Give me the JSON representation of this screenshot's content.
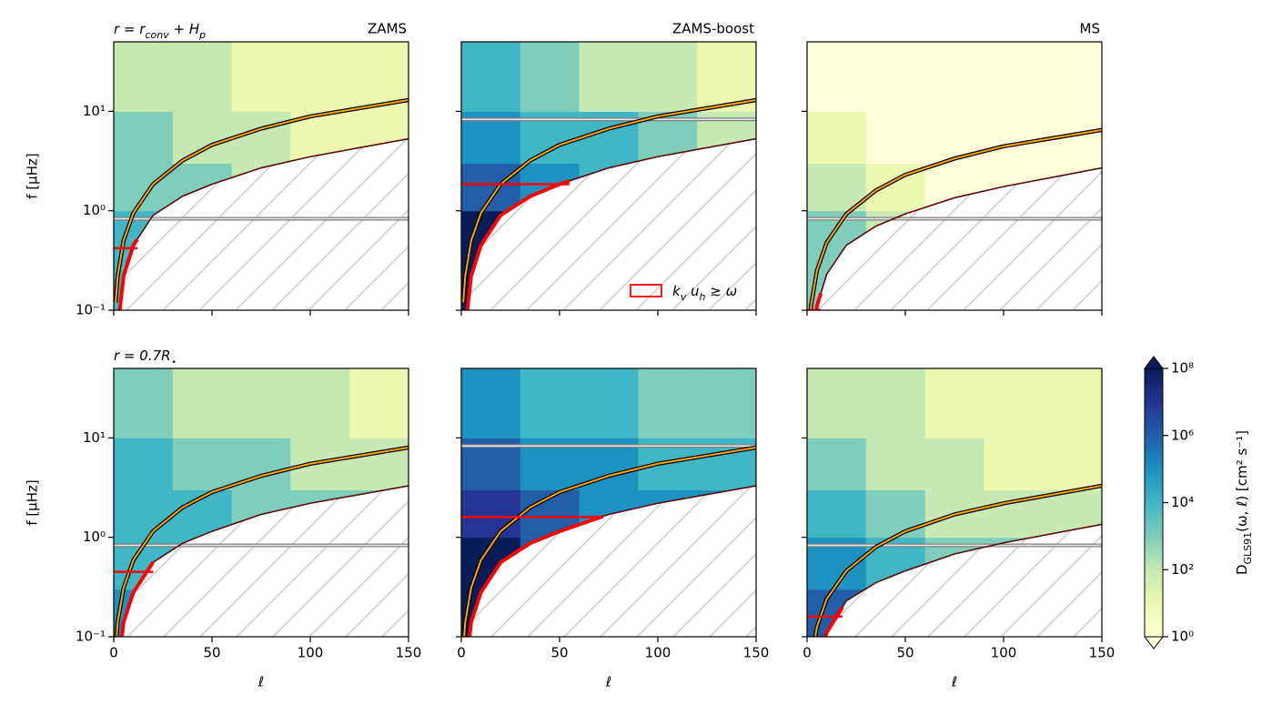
{
  "chart_data": [
    {
      "type": "heatmap",
      "title": "ZAMS",
      "row_label": "r = r_{conv} + H_p",
      "ylabel": "f [μHz]",
      "show_ytick_labels": true,
      "show_xtick_labels": false,
      "xlim": [
        0,
        150
      ],
      "xticks": [
        0,
        50,
        100,
        150
      ],
      "ylim": [
        0.1,
        50
      ],
      "log_y": true,
      "yticks": [
        {
          "value": 0.1,
          "label": "10⁻¹"
        },
        {
          "value": 1,
          "label": "10⁰"
        },
        {
          "value": 10,
          "label": "10¹"
        }
      ],
      "l_edges": [
        0,
        30,
        60,
        90,
        120,
        150
      ],
      "f_edges": [
        0.1,
        0.3,
        1,
        3,
        10,
        50
      ],
      "values": [
        [
          10000.0,
          100.0,
          10.0,
          10.0,
          10.0
        ],
        [
          10000.0,
          100.0,
          10.0,
          10.0,
          10.0
        ],
        [
          1000.0,
          1000.0,
          100.0,
          10.0,
          10.0
        ],
        [
          1000.0,
          100.0,
          100.0,
          10.0,
          10.0
        ],
        [
          100.0,
          100.0,
          10.0,
          10.0,
          10.0
        ]
      ],
      "curves": {
        "l": [
          1,
          2,
          5,
          10,
          20,
          35,
          50,
          75,
          100,
          150
        ],
        "upper": [
          0.12,
          0.22,
          0.5,
          0.95,
          1.85,
          3.2,
          4.6,
          6.7,
          8.9,
          13
        ],
        "lower": [
          0.03,
          0.065,
          0.22,
          0.45,
          0.9,
          1.4,
          1.85,
          2.7,
          3.5,
          5.3
        ]
      },
      "upper_color": "#ffa500",
      "lower_color": "#5a0a0a",
      "hline": 0.83,
      "kvuh": {
        "f": 0.42,
        "l_max": 12
      },
      "kvuh_color": "#ff0000"
    },
    {
      "type": "heatmap",
      "title": "ZAMS-boost",
      "show_ytick_labels": false,
      "show_xtick_labels": false,
      "xlim": [
        0,
        150
      ],
      "xticks": [
        0,
        50,
        100,
        150
      ],
      "ylim": [
        0.1,
        50
      ],
      "log_y": true,
      "yticks": [
        {
          "value": 0.1,
          "label": "10⁻¹"
        },
        {
          "value": 1,
          "label": "10⁰"
        },
        {
          "value": 10,
          "label": "10¹"
        }
      ],
      "l_edges": [
        0,
        30,
        60,
        90,
        120,
        150
      ],
      "f_edges": [
        0.1,
        0.3,
        1,
        3,
        10,
        50
      ],
      "values": [
        [
          100000000.0,
          100000.0,
          10000.0,
          10000.0,
          10000.0
        ],
        [
          100000000.0,
          1000000.0,
          100000.0,
          10000.0,
          10000.0
        ],
        [
          1000000.0,
          100000.0,
          10000.0,
          1000.0,
          1000.0
        ],
        [
          100000.0,
          10000.0,
          10000.0,
          1000.0,
          100.0
        ],
        [
          10000.0,
          1000.0,
          100.0,
          100.0,
          10.0
        ]
      ],
      "curves": {
        "l": [
          1,
          2,
          5,
          10,
          20,
          35,
          50,
          75,
          100,
          150
        ],
        "upper": [
          0.12,
          0.22,
          0.5,
          0.95,
          1.85,
          3.2,
          4.6,
          6.7,
          8.9,
          13
        ],
        "lower": [
          0.03,
          0.065,
          0.22,
          0.45,
          0.9,
          1.4,
          1.85,
          2.7,
          3.5,
          5.3
        ]
      },
      "upper_color": "#ffa500",
      "lower_color": "#5a0a0a",
      "hline": 8.3,
      "kvuh": {
        "f": 1.85,
        "l_max": 55
      },
      "kvuh_color": "#ff0000",
      "legend": {
        "label": "k_v u_h ≳ ω",
        "corner": "lower right"
      }
    },
    {
      "type": "heatmap",
      "title": "MS",
      "show_ytick_labels": false,
      "show_xtick_labels": false,
      "xlim": [
        0,
        150
      ],
      "xticks": [
        0,
        50,
        100,
        150
      ],
      "ylim": [
        0.1,
        50
      ],
      "log_y": true,
      "yticks": [
        {
          "value": 0.1,
          "label": "10⁻¹"
        },
        {
          "value": 1,
          "label": "10⁰"
        },
        {
          "value": 10,
          "label": "10¹"
        }
      ],
      "l_edges": [
        0,
        30,
        60,
        90,
        120,
        150
      ],
      "f_edges": [
        0.1,
        0.3,
        1,
        3,
        10,
        50
      ],
      "values": [
        [
          1000.0,
          10.0,
          1,
          1,
          1
        ],
        [
          1000.0,
          100.0,
          10.0,
          1,
          1
        ],
        [
          100.0,
          10.0,
          1,
          1,
          1
        ],
        [
          10.0,
          1,
          1,
          1,
          1
        ],
        [
          1,
          1,
          1,
          1,
          1
        ]
      ],
      "curves": {
        "l": [
          1,
          2,
          5,
          10,
          20,
          35,
          50,
          75,
          100,
          150
        ],
        "upper": [
          0.06,
          0.11,
          0.25,
          0.48,
          0.93,
          1.6,
          2.3,
          3.35,
          4.45,
          6.5
        ],
        "lower": [
          0.015,
          0.033,
          0.11,
          0.23,
          0.45,
          0.7,
          0.93,
          1.35,
          1.75,
          2.7
        ]
      },
      "upper_color": "#ffa500",
      "lower_color": "#5a0a0a",
      "hline": 0.83,
      "kvuh": {
        "f": 0.1,
        "l_max": 7
      },
      "kvuh_color": "#ff0000"
    },
    {
      "type": "heatmap",
      "row_label": "r = 0.7R_⋆",
      "ylabel": "f [μHz]",
      "xlabel": "ℓ",
      "show_ytick_labels": true,
      "show_xtick_labels": true,
      "xlim": [
        0,
        150
      ],
      "xticks": [
        0,
        50,
        100,
        150
      ],
      "ylim": [
        0.1,
        50
      ],
      "log_y": true,
      "yticks": [
        {
          "value": 0.1,
          "label": "10⁻¹"
        },
        {
          "value": 1,
          "label": "10⁰"
        },
        {
          "value": 10,
          "label": "10¹"
        }
      ],
      "l_edges": [
        0,
        30,
        60,
        90,
        120,
        150
      ],
      "f_edges": [
        0.1,
        0.3,
        1,
        3,
        10,
        50
      ],
      "values": [
        [
          100000.0,
          1000.0,
          1000.0,
          1000.0,
          1000.0
        ],
        [
          10000.0,
          10000.0,
          1000.0,
          1000.0,
          1000.0
        ],
        [
          10000.0,
          10000.0,
          1000.0,
          1000.0,
          1000.0
        ],
        [
          10000.0,
          1000.0,
          1000.0,
          100.0,
          100.0
        ],
        [
          1000.0,
          100.0,
          100.0,
          100.0,
          10.0
        ]
      ],
      "curves": {
        "l": [
          1,
          2,
          5,
          10,
          20,
          35,
          50,
          75,
          100,
          150
        ],
        "upper": [
          0.074,
          0.14,
          0.31,
          0.59,
          1.15,
          2,
          2.85,
          4.15,
          5.5,
          8
        ],
        "lower": [
          0.019,
          0.04,
          0.14,
          0.28,
          0.56,
          0.87,
          1.15,
          1.7,
          2.2,
          3.3
        ]
      },
      "upper_color": "#ffa500",
      "lower_color": "#5a0a0a",
      "hline": 0.83,
      "kvuh": {
        "f": 0.45,
        "l_max": 20
      },
      "kvuh_color": "#ff0000"
    },
    {
      "type": "heatmap",
      "xlabel": "ℓ",
      "show_ytick_labels": false,
      "show_xtick_labels": true,
      "xlim": [
        0,
        150
      ],
      "xticks": [
        0,
        50,
        100,
        150
      ],
      "ylim": [
        0.1,
        50
      ],
      "log_y": true,
      "yticks": [
        {
          "value": 0.1,
          "label": "10⁻¹"
        },
        {
          "value": 1,
          "label": "10⁰"
        },
        {
          "value": 10,
          "label": "10¹"
        }
      ],
      "l_edges": [
        0,
        30,
        60,
        90,
        120,
        150
      ],
      "f_edges": [
        0.1,
        0.3,
        1,
        3,
        10,
        50
      ],
      "values": [
        [
          100000000.0,
          10000000.0,
          1000000.0,
          1000000.0,
          1000000.0
        ],
        [
          100000000.0,
          1000000.0,
          100000.0,
          100000.0,
          100000.0
        ],
        [
          10000000.0,
          1000000.0,
          100000.0,
          100000.0,
          100000.0
        ],
        [
          1000000.0,
          100000.0,
          100000.0,
          10000.0,
          10000.0
        ],
        [
          100000.0,
          10000.0,
          10000.0,
          1000.0,
          1000.0
        ]
      ],
      "curves": {
        "l": [
          1,
          2,
          5,
          10,
          20,
          35,
          50,
          75,
          100,
          150
        ],
        "upper": [
          0.074,
          0.14,
          0.31,
          0.59,
          1.15,
          2,
          2.85,
          4.15,
          5.5,
          8
        ],
        "lower": [
          0.019,
          0.04,
          0.14,
          0.28,
          0.56,
          0.87,
          1.15,
          1.7,
          2.2,
          3.3
        ]
      },
      "upper_color": "#ffa500",
      "lower_color": "#5a0a0a",
      "hline": 8.3,
      "kvuh": {
        "f": 1.6,
        "l_max": 72
      },
      "kvuh_color": "#ff0000"
    },
    {
      "type": "heatmap",
      "xlabel": "ℓ",
      "show_ytick_labels": false,
      "show_xtick_labels": true,
      "xlim": [
        0,
        150
      ],
      "xticks": [
        0,
        50,
        100,
        150
      ],
      "ylim": [
        0.1,
        50
      ],
      "log_y": true,
      "yticks": [
        {
          "value": 0.1,
          "label": "10⁻¹"
        },
        {
          "value": 1,
          "label": "10⁰"
        },
        {
          "value": 10,
          "label": "10¹"
        }
      ],
      "l_edges": [
        0,
        30,
        60,
        90,
        120,
        150
      ],
      "f_edges": [
        0.1,
        0.3,
        1,
        3,
        10,
        50
      ],
      "values": [
        [
          1000000.0,
          10000.0,
          1000.0,
          1000.0,
          1000.0
        ],
        [
          100000.0,
          10000.0,
          1000.0,
          1000.0,
          100.0
        ],
        [
          10000.0,
          1000.0,
          100.0,
          100.0,
          100.0
        ],
        [
          1000.0,
          100.0,
          100.0,
          10.0,
          10.0
        ],
        [
          100.0,
          100.0,
          10.0,
          10.0,
          10.0
        ]
      ],
      "curves": {
        "l": [
          1,
          2,
          5,
          10,
          20,
          35,
          50,
          75,
          100,
          150
        ],
        "upper": [
          0.03,
          0.055,
          0.125,
          0.24,
          0.46,
          0.8,
          1.15,
          1.7,
          2.2,
          3.3
        ],
        "lower": [
          0.008,
          0.016,
          0.055,
          0.11,
          0.23,
          0.35,
          0.46,
          0.68,
          0.88,
          1.35
        ]
      },
      "upper_color": "#ffa500",
      "lower_color": "#5a0a0a",
      "hline": 0.83,
      "kvuh": {
        "f": 0.16,
        "l_max": 18
      },
      "kvuh_color": "#ff0000"
    }
  ],
  "colorbar": {
    "label": "D_{GLS91}(ω, ℓ) [cm² s⁻¹]",
    "lim": [
      1,
      100000000.0
    ],
    "log": true,
    "extend": "both",
    "ticks": [
      {
        "value": 1,
        "label": "10⁰"
      },
      {
        "value": 100,
        "label": "10²"
      },
      {
        "value": 10000,
        "label": "10⁴"
      },
      {
        "value": 1000000,
        "label": "10⁶"
      },
      {
        "value": 100000000,
        "label": "10⁸"
      }
    ],
    "colormap": [
      "#ffffd9",
      "#edf8b1",
      "#c7e9b4",
      "#7fcdbb",
      "#41b6c4",
      "#1d91c0",
      "#225ea8",
      "#253494",
      "#081d58"
    ]
  }
}
